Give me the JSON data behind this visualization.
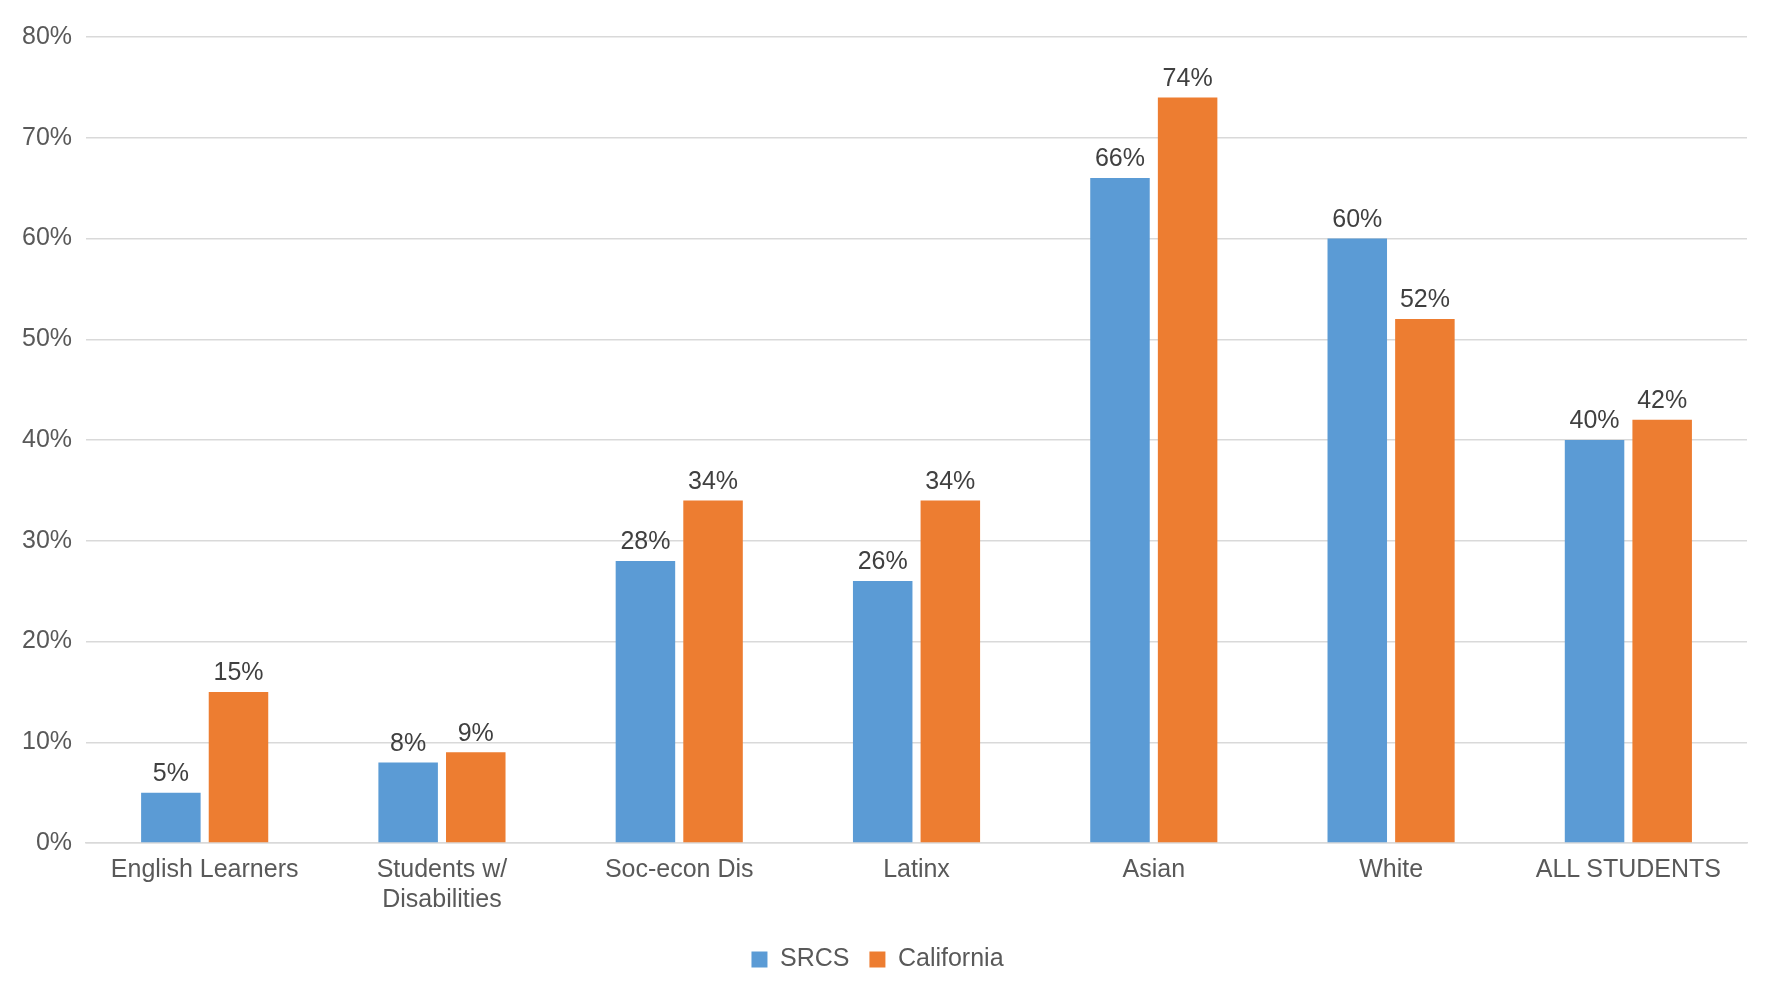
{
  "chart_data": {
    "type": "bar",
    "categories": [
      "English Learners",
      "Students w/ Disabilities",
      "Soc-econ Dis",
      "Latinx",
      "Asian",
      "White",
      "ALL STUDENTS"
    ],
    "series": [
      {
        "name": "SRCS",
        "color": "#5b9bd5",
        "values": [
          5,
          8,
          28,
          26,
          66,
          60,
          40
        ],
        "value_labels": [
          "5%",
          "8%",
          "28%",
          "26%",
          "66%",
          "60%",
          "40%"
        ]
      },
      {
        "name": "California",
        "color": "#ed7d31",
        "values": [
          15,
          9,
          34,
          34,
          74,
          52,
          42
        ],
        "value_labels": [
          "15%",
          "9%",
          "34%",
          "34%",
          "74%",
          "52%",
          "42%"
        ]
      }
    ],
    "ylim": [
      0,
      80
    ],
    "yticks": [
      {
        "value": 0,
        "label": "0%"
      },
      {
        "value": 10,
        "label": "10%"
      },
      {
        "value": 20,
        "label": "20%"
      },
      {
        "value": 30,
        "label": "30%"
      },
      {
        "value": 40,
        "label": "40%"
      },
      {
        "value": 50,
        "label": "50%"
      },
      {
        "value": 60,
        "label": "60%"
      },
      {
        "value": 70,
        "label": "70%"
      },
      {
        "value": 80,
        "label": "80%"
      }
    ],
    "grid": "y",
    "legend": "bottom"
  }
}
